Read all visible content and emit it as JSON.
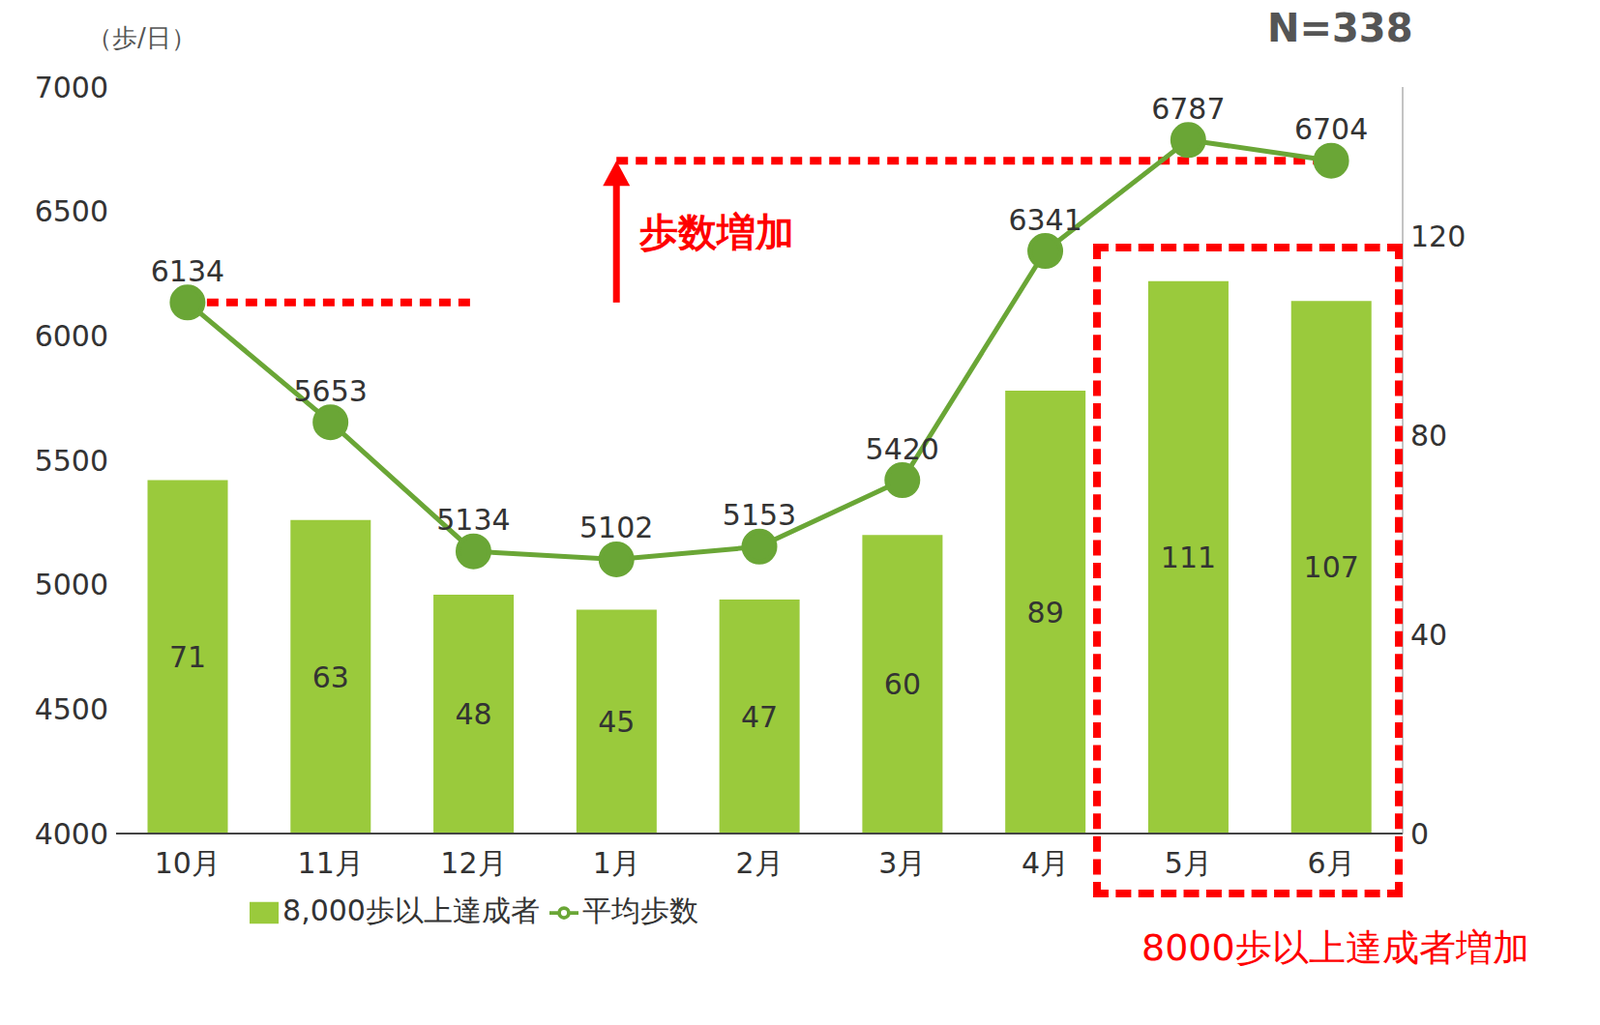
{
  "chart_data": {
    "type": "bar",
    "ylabel": "（歩/日）",
    "categories": [
      "10月",
      "11月",
      "12月",
      "1月",
      "2月",
      "3月",
      "4月",
      "5月",
      "6月"
    ],
    "series": [
      {
        "name": "8,000歩以上達成者",
        "type": "bar",
        "axis": "y2",
        "color": "#9aca3c",
        "values": [
          71,
          63,
          48,
          45,
          47,
          60,
          89,
          111,
          107
        ]
      },
      {
        "name": "平均歩数",
        "type": "line",
        "color": "#6aa636",
        "marker": "circle",
        "values": [
          6134,
          5653,
          5134,
          5102,
          5153,
          5420,
          6341,
          6787,
          6704
        ]
      }
    ],
    "ylim": [
      4000,
      7000
    ],
    "yticks": [
      4000,
      4500,
      5000,
      5500,
      6000,
      6500,
      7000
    ],
    "y2lim": [
      0,
      150
    ],
    "y2ticks": [
      0,
      40,
      80,
      120
    ],
    "data_labels": true,
    "legend": "bottom",
    "grid": false,
    "annotations": [
      "歩数増加",
      "8000歩以上達成者増加",
      "N=338"
    ]
  }
}
